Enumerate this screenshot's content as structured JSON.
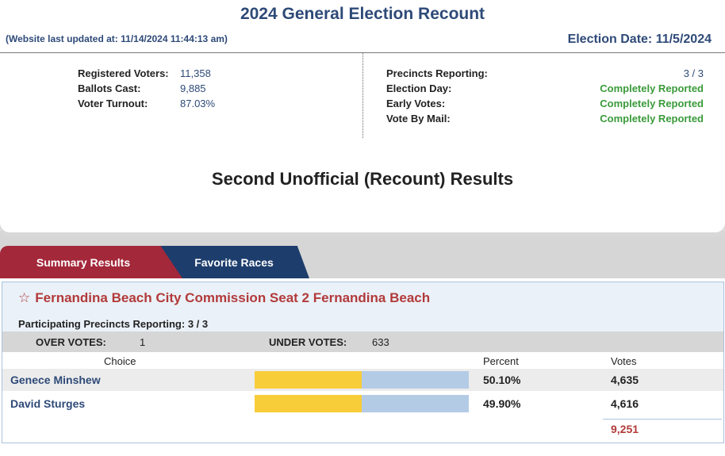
{
  "header": {
    "title": "2024 General Election Recount",
    "updated": "(Website last updated at: 11/14/2024 11:44:13 am)",
    "election_date": "Election Date: 11/5/2024"
  },
  "stats_left": [
    {
      "label": "Registered Voters:",
      "value": "11,358"
    },
    {
      "label": "Ballots Cast:",
      "value": "9,885"
    },
    {
      "label": "Voter Turnout:",
      "value": "87.03%"
    }
  ],
  "stats_right": [
    {
      "label": "Precincts Reporting:",
      "value": "3 / 3"
    },
    {
      "label": "Election Day:",
      "value": "Completely Reported"
    },
    {
      "label": "Early Votes:",
      "value": "Completely Reported"
    },
    {
      "label": "Vote By Mail:",
      "value": "Completely Reported"
    }
  ],
  "section_title": "Second Unofficial (Recount) Results",
  "tabs": [
    {
      "label": "Summary Results"
    },
    {
      "label": "Favorite Races"
    }
  ],
  "race": {
    "star_icon": "☆",
    "title": "Fernandina Beach City Commission Seat 2 Fernandina Beach",
    "precincts": "Participating Precincts Reporting: 3 / 3",
    "over_label": "OVER VOTES:",
    "over_value": "1",
    "under_label": "UNDER VOTES:",
    "under_value": "633",
    "col_choice": "Choice",
    "col_percent": "Percent",
    "col_votes": "Votes",
    "candidates": [
      {
        "name": "Genece Minshew",
        "percent": "50.10%",
        "votes": "4,635",
        "share": 0.501
      },
      {
        "name": "David Sturges",
        "percent": "49.90%",
        "votes": "4,616",
        "share": 0.499
      }
    ],
    "total": "9,251"
  },
  "colors": {
    "accent": "#2e4a78",
    "red": "#a3283a",
    "navy": "#1d3e6d",
    "green": "#3a9a3a",
    "bar_fill": "#f8cd3a",
    "bar_bg": "#b4cbe6"
  }
}
